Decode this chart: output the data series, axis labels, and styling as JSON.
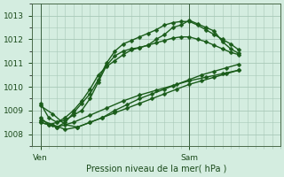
{
  "xlabel": "Pression niveau de la mer( hPa )",
  "bg_color": "#d4ede0",
  "grid_color": "#a8c8b8",
  "line_color": "#1a5c1a",
  "ylim": [
    1007.5,
    1013.5
  ],
  "xlim": [
    0,
    60
  ],
  "yticks": [
    1008,
    1009,
    1010,
    1011,
    1012,
    1013
  ],
  "xtick_positions": [
    2,
    38
  ],
  "xtick_labels": [
    "Ven",
    "Sam"
  ],
  "vline_ven": 2,
  "vline_sam": 38,
  "series": [
    {
      "x": [
        2,
        4,
        6,
        8,
        10,
        12,
        14,
        16,
        18,
        20,
        22,
        24,
        26,
        28,
        30,
        32,
        34,
        36,
        38,
        40,
        42,
        44,
        46,
        48,
        50
      ],
      "y": [
        1009.3,
        1008.7,
        1008.5,
        1008.6,
        1008.8,
        1009.0,
        1009.5,
        1010.2,
        1010.9,
        1011.3,
        1011.5,
        1011.6,
        1011.65,
        1011.75,
        1012.0,
        1012.2,
        1012.5,
        1012.6,
        1012.8,
        1012.65,
        1012.5,
        1012.35,
        1011.9,
        1011.6,
        1011.4
      ],
      "marker": "D",
      "linewidth": 1.0,
      "markersize": 2.5
    },
    {
      "x": [
        2,
        4,
        6,
        8,
        10,
        12,
        14,
        16,
        18,
        20,
        22,
        24,
        26,
        28,
        30,
        32,
        34,
        36,
        38,
        40,
        42,
        44,
        46,
        48,
        50
      ],
      "y": [
        1008.7,
        1008.4,
        1008.3,
        1008.5,
        1008.9,
        1009.3,
        1009.7,
        1010.3,
        1011.0,
        1011.5,
        1011.8,
        1011.95,
        1012.1,
        1012.25,
        1012.4,
        1012.6,
        1012.7,
        1012.75,
        1012.75,
        1012.6,
        1012.4,
        1012.2,
        1012.0,
        1011.8,
        1011.55
      ],
      "marker": "D",
      "linewidth": 1.0,
      "markersize": 2.5
    },
    {
      "x": [
        2,
        4,
        6,
        8,
        10,
        12,
        14,
        16,
        18,
        20,
        22,
        24,
        26,
        28,
        30,
        32,
        34,
        36,
        38,
        40,
        42,
        44,
        46,
        48,
        50
      ],
      "y": [
        1008.5,
        1008.4,
        1008.5,
        1008.7,
        1009.0,
        1009.4,
        1009.9,
        1010.5,
        1010.85,
        1011.1,
        1011.35,
        1011.55,
        1011.65,
        1011.75,
        1011.85,
        1011.95,
        1012.05,
        1012.1,
        1012.1,
        1012.0,
        1011.9,
        1011.75,
        1011.6,
        1011.45,
        1011.35
      ],
      "marker": "D",
      "linewidth": 1.0,
      "markersize": 2.5
    },
    {
      "x": [
        2,
        5,
        8,
        11,
        14,
        17,
        20,
        23,
        26,
        29,
        32,
        35,
        38,
        41,
        44,
        47,
        50
      ],
      "y": [
        1009.2,
        1008.85,
        1008.4,
        1008.3,
        1008.5,
        1008.7,
        1009.0,
        1009.25,
        1009.5,
        1009.7,
        1009.9,
        1010.1,
        1010.3,
        1010.5,
        1010.65,
        1010.8,
        1010.95
      ],
      "marker": "D",
      "linewidth": 1.0,
      "markersize": 2.5
    },
    {
      "x": [
        2,
        5,
        8,
        11,
        14,
        17,
        20,
        23,
        26,
        29,
        32,
        35,
        38,
        41,
        44,
        47,
        50
      ],
      "y": [
        1008.6,
        1008.4,
        1008.2,
        1008.3,
        1008.5,
        1008.7,
        1008.9,
        1009.1,
        1009.3,
        1009.5,
        1009.7,
        1009.9,
        1010.1,
        1010.25,
        1010.4,
        1010.55,
        1010.7
      ],
      "marker": "D",
      "linewidth": 1.0,
      "markersize": 2.5
    },
    {
      "x": [
        2,
        6,
        10,
        14,
        18,
        22,
        26,
        30,
        34,
        38,
        42,
        46,
        50
      ],
      "y": [
        1008.5,
        1008.3,
        1008.5,
        1008.8,
        1009.1,
        1009.4,
        1009.65,
        1009.85,
        1010.05,
        1010.25,
        1010.4,
        1010.55,
        1010.7
      ],
      "marker": "D",
      "linewidth": 1.0,
      "markersize": 2.5
    }
  ]
}
